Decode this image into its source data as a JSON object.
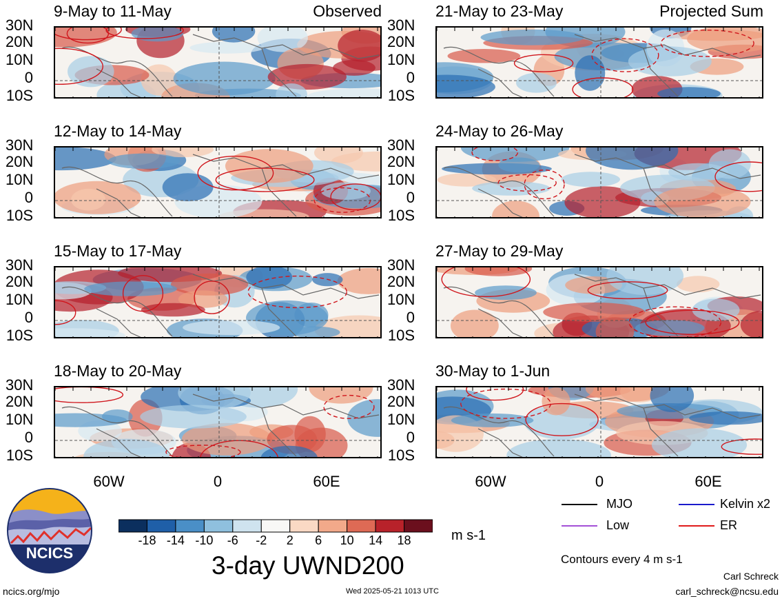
{
  "panels": [
    {
      "title": "9-May to 11-May",
      "tag": "Observed"
    },
    {
      "title": "21-May to 23-May",
      "tag": "Projected Sum"
    },
    {
      "title": "12-May to 14-May",
      "tag": ""
    },
    {
      "title": "24-May to 26-May",
      "tag": ""
    },
    {
      "title": "15-May to 17-May",
      "tag": ""
    },
    {
      "title": "27-May to 29-May",
      "tag": ""
    },
    {
      "title": "18-May to 20-May",
      "tag": ""
    },
    {
      "title": "30-May to 1-Jun",
      "tag": ""
    }
  ],
  "lat_labels": [
    "30N",
    "20N",
    "10N",
    "0",
    "10S"
  ],
  "lon_labels": [
    "60W",
    "0",
    "60E"
  ],
  "colorbar": {
    "ticks": [
      "-18",
      "-14",
      "-10",
      "-6",
      "-2",
      "2",
      "6",
      "10",
      "14",
      "18"
    ],
    "colors": [
      "#0b2f5e",
      "#1f5fa8",
      "#4a8fc7",
      "#8fc0de",
      "#cfe3ef",
      "#f8f8f6",
      "#fad9c4",
      "#f2a98a",
      "#de6a55",
      "#b8222a",
      "#6b0f1d"
    ],
    "units": "m s-1",
    "title": "3-day UWND200"
  },
  "legend": {
    "items": [
      {
        "label": "MJO",
        "color": "#000000"
      },
      {
        "label": "Kelvin x2",
        "color": "#1a1acc"
      },
      {
        "label": "Low",
        "color": "#a34fd6"
      },
      {
        "label": "ER",
        "color": "#e01a1a"
      }
    ],
    "contours_note": "Contours every 4 m s-1"
  },
  "branding": {
    "logo_text": "NCICS",
    "site": "ncics.org/mjo",
    "timestamp": "Wed 2025-05-21 1013 UTC",
    "author": "Carl Schreck",
    "email": "carl_schreck@ncsu.edu"
  }
}
